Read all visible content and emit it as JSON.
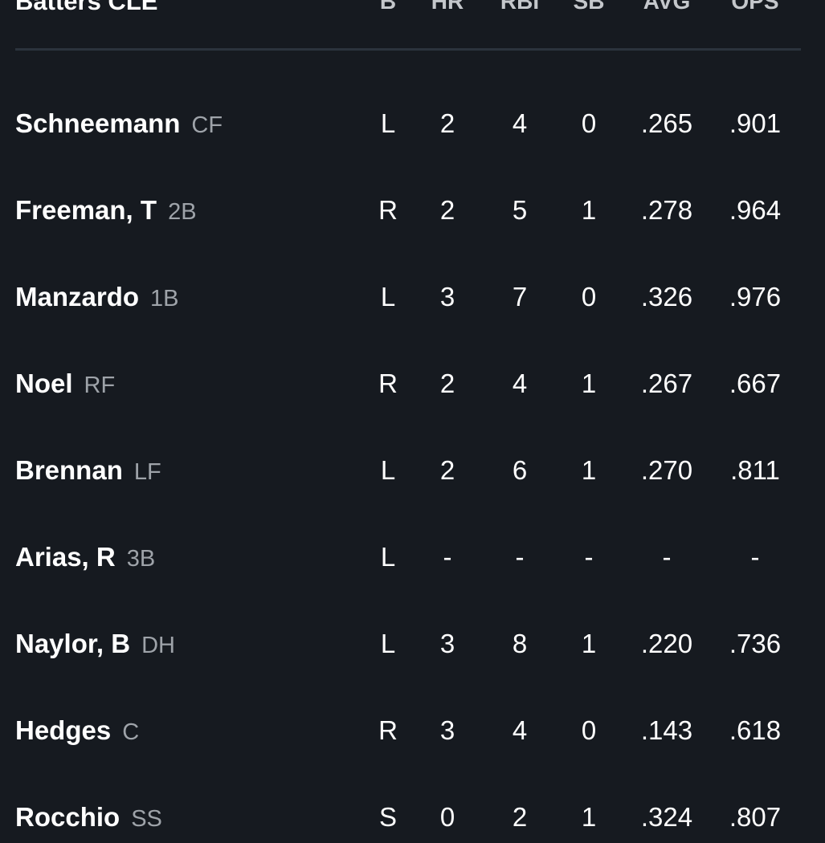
{
  "header": {
    "title": "Batters CLE",
    "columns": [
      "B",
      "HR",
      "RBI",
      "SB",
      "AVG",
      "OPS"
    ]
  },
  "batters": [
    {
      "name": "Schneemann",
      "pos": "CF",
      "stats": [
        "L",
        "2",
        "4",
        "0",
        ".265",
        ".901"
      ]
    },
    {
      "name": "Freeman, T",
      "pos": "2B",
      "stats": [
        "R",
        "2",
        "5",
        "1",
        ".278",
        ".964"
      ]
    },
    {
      "name": "Manzardo",
      "pos": "1B",
      "stats": [
        "L",
        "3",
        "7",
        "0",
        ".326",
        ".976"
      ]
    },
    {
      "name": "Noel",
      "pos": "RF",
      "stats": [
        "R",
        "2",
        "4",
        "1",
        ".267",
        ".667"
      ]
    },
    {
      "name": "Brennan",
      "pos": "LF",
      "stats": [
        "L",
        "2",
        "6",
        "1",
        ".270",
        ".811"
      ]
    },
    {
      "name": "Arias, R",
      "pos": "3B",
      "stats": [
        "L",
        "-",
        "-",
        "-",
        "-",
        "-"
      ]
    },
    {
      "name": "Naylor, B",
      "pos": "DH",
      "stats": [
        "L",
        "3",
        "8",
        "1",
        ".220",
        ".736"
      ]
    },
    {
      "name": "Hedges",
      "pos": "C",
      "stats": [
        "R",
        "3",
        "4",
        "0",
        ".143",
        ".618"
      ]
    },
    {
      "name": "Rocchio",
      "pos": "SS",
      "stats": [
        "S",
        "0",
        "2",
        "1",
        ".324",
        ".807"
      ]
    }
  ]
}
